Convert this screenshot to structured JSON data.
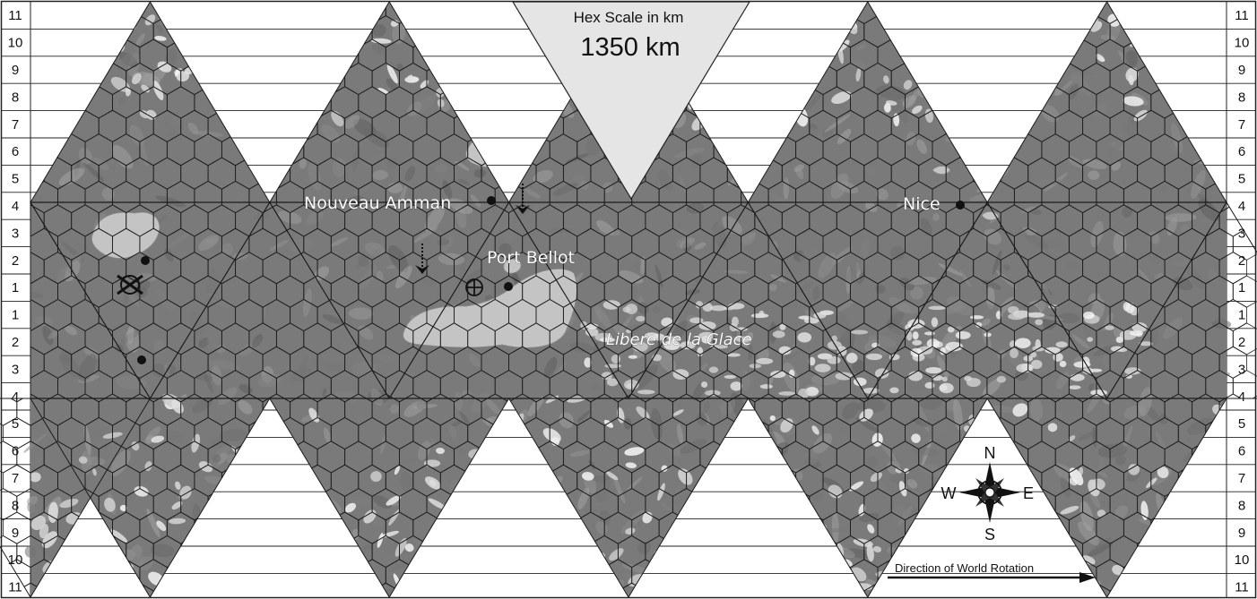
{
  "row_labels_top": [
    "11",
    "10",
    "9",
    "8",
    "7",
    "6",
    "5",
    "4",
    "3",
    "2",
    "1"
  ],
  "row_labels_bottom": [
    "1",
    "2",
    "3",
    "4",
    "5",
    "6",
    "7",
    "8",
    "9",
    "10",
    "11"
  ],
  "scale": {
    "title": "Hex Scale in km",
    "value": "1350 km"
  },
  "cities": [
    {
      "id": "nouveau-amman",
      "name": "Nouveau Amman"
    },
    {
      "id": "port-bellot",
      "name": "Port Bellot"
    },
    {
      "id": "nice",
      "name": "Nice"
    }
  ],
  "region_label": "Libere de la Glace",
  "compass": {
    "north": "N",
    "south": "S",
    "east": "E",
    "west": "W"
  },
  "rotation_label": "Direction of World Rotation",
  "icons": [
    "starport-icon",
    "crossed-swords-icon",
    "descent-arrow-icon",
    "city-dot-icon",
    "compass-rose-icon"
  ],
  "colors": {
    "land": "#7a7a7a",
    "ice": "#e6e6e6",
    "water": "#c4c4c4",
    "hex_lines": "#1a1a1a",
    "scale_box": "#e5e5e5"
  }
}
